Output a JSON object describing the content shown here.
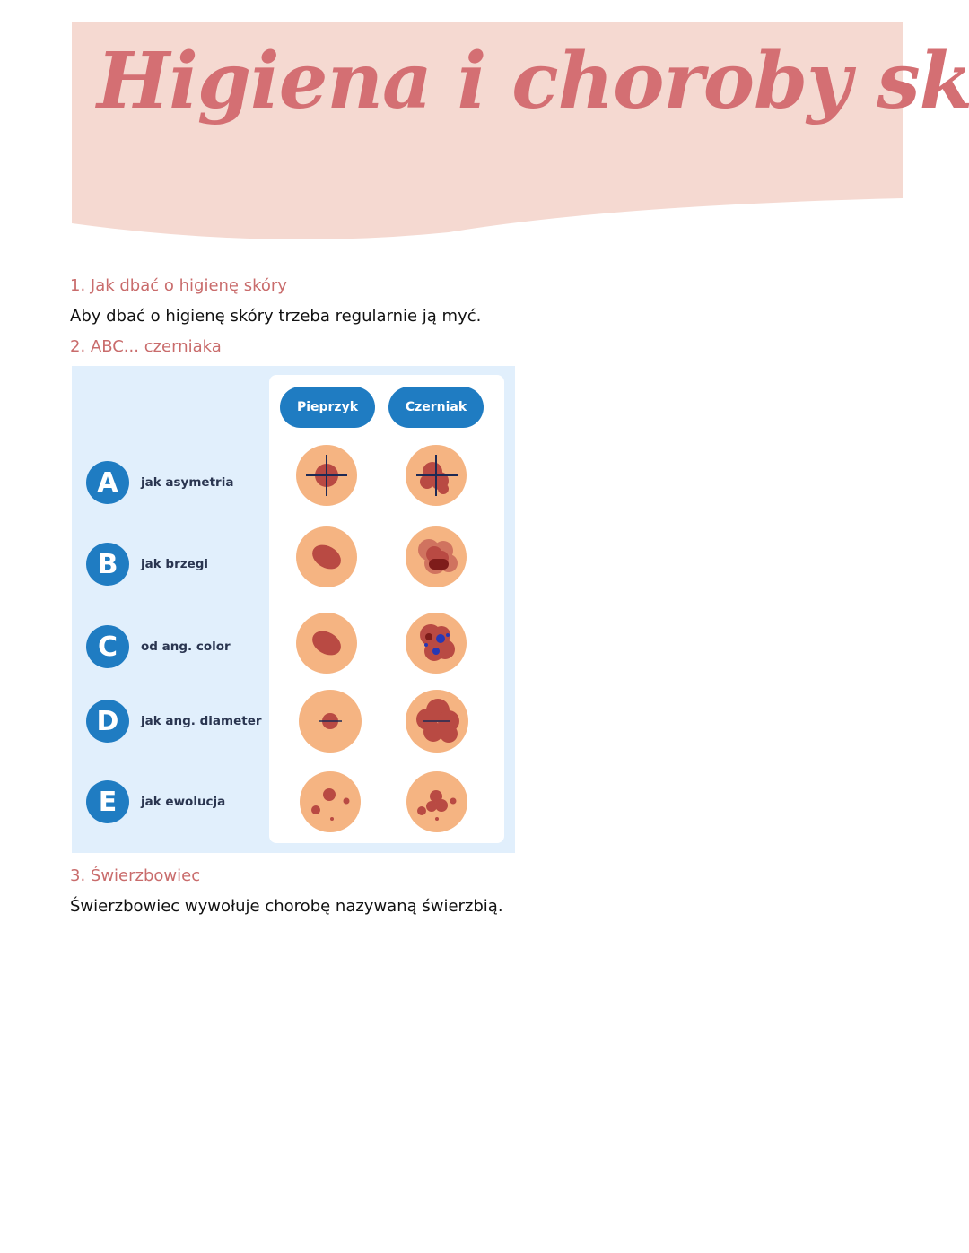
{
  "header": {
    "title": "Higiena i choroby skóry",
    "background": "#f5d9d1",
    "title_color": "#d46f73"
  },
  "sections": [
    {
      "heading": "1. Jak dbać o higienę skóry",
      "text": "Aby dbać o higienę skóry trzeba regularnie ją myć."
    },
    {
      "heading": "2. ABC... czerniaka"
    },
    {
      "heading": "3. Świerzbowiec",
      "text": "Świerzbowiec wywołuje chorobę nazywaną świerzbią."
    }
  ],
  "infographic": {
    "columns": [
      "Pieprzyk",
      "Czerniak"
    ],
    "rows": [
      {
        "letter": "A",
        "label": "jak asymetria"
      },
      {
        "letter": "B",
        "label": "jak brzegi"
      },
      {
        "letter": "C",
        "label": "od ang. color"
      },
      {
        "letter": "D",
        "label": "jak ang. diameter"
      },
      {
        "letter": "E",
        "label": "jak ewolucja"
      }
    ],
    "accent": "#1f7cc2",
    "skin": "#f5b482",
    "lesion": "#b94a43"
  }
}
